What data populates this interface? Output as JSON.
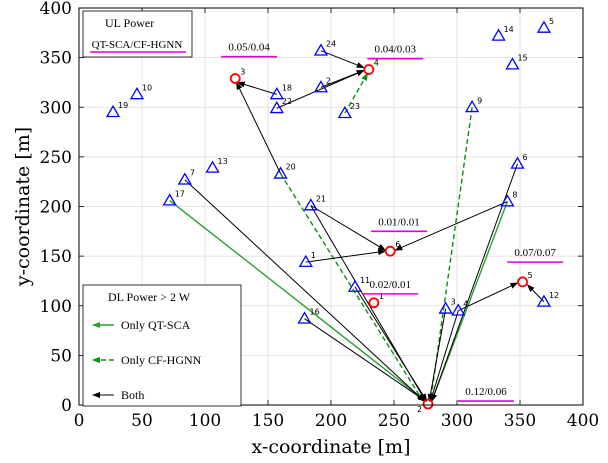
{
  "chart_data": {
    "type": "scatter",
    "xlabel": "x-coordinate [m]",
    "ylabel": "y-coordinate [m]",
    "xlim": [
      0,
      400
    ],
    "ylim": [
      0,
      400
    ],
    "xticks": [
      0,
      50,
      100,
      150,
      200,
      250,
      300,
      350,
      400
    ],
    "yticks": [
      0,
      50,
      100,
      150,
      200,
      250,
      300,
      350,
      400
    ],
    "grid": true,
    "colors": {
      "user": "#0000ff",
      "ap": "#ff0000",
      "qt": "#2ca02c",
      "cf": "#0a8f0a",
      "both": "#000000",
      "underline": "#e000e0"
    },
    "users": [
      {
        "id": "1",
        "x": 180,
        "y": 144
      },
      {
        "id": "2",
        "x": 192,
        "y": 320
      },
      {
        "id": "3",
        "x": 291,
        "y": 97
      },
      {
        "id": "4",
        "x": 301,
        "y": 95
      },
      {
        "id": "5",
        "x": 369,
        "y": 380
      },
      {
        "id": "6",
        "x": 348,
        "y": 243
      },
      {
        "id": "7",
        "x": 84,
        "y": 227
      },
      {
        "id": "8",
        "x": 340,
        "y": 205
      },
      {
        "id": "9",
        "x": 312,
        "y": 300
      },
      {
        "id": "10",
        "x": 46,
        "y": 313
      },
      {
        "id": "11",
        "x": 219,
        "y": 119
      },
      {
        "id": "12",
        "x": 369,
        "y": 104
      },
      {
        "id": "13",
        "x": 106,
        "y": 239
      },
      {
        "id": "14",
        "x": 333,
        "y": 372
      },
      {
        "id": "15",
        "x": 344,
        "y": 343
      },
      {
        "id": "16",
        "x": 179,
        "y": 87
      },
      {
        "id": "17",
        "x": 72,
        "y": 206
      },
      {
        "id": "18",
        "x": 157,
        "y": 313
      },
      {
        "id": "19",
        "x": 27,
        "y": 295
      },
      {
        "id": "20",
        "x": 160,
        "y": 233
      },
      {
        "id": "21",
        "x": 184,
        "y": 201
      },
      {
        "id": "22",
        "x": 157,
        "y": 299
      },
      {
        "id": "23",
        "x": 211,
        "y": 294
      },
      {
        "id": "24",
        "x": 192,
        "y": 357
      }
    ],
    "aps": [
      {
        "id": "1",
        "x": 234,
        "y": 103
      },
      {
        "id": "2",
        "x": 277,
        "y": 1
      },
      {
        "id": "3",
        "x": 124,
        "y": 329
      },
      {
        "id": "4",
        "x": 230,
        "y": 338
      },
      {
        "id": "5",
        "x": 352,
        "y": 124
      },
      {
        "id": "6",
        "x": 247,
        "y": 155
      }
    ],
    "links": [
      {
        "type": "qt",
        "from": [
          72,
          206
        ],
        "to": [
          275,
          4
        ]
      },
      {
        "type": "qt",
        "from": [
          340,
          205
        ],
        "to": [
          280,
          4
        ]
      },
      {
        "type": "cf",
        "from": [
          160,
          233
        ],
        "to": [
          273,
          4
        ]
      },
      {
        "type": "cf",
        "from": [
          312,
          300
        ],
        "to": [
          279,
          4
        ]
      },
      {
        "type": "cf",
        "from": [
          211,
          294
        ],
        "to": [
          229,
          334
        ]
      },
      {
        "type": "both",
        "from": [
          84,
          227
        ],
        "to": [
          274,
          4
        ]
      },
      {
        "type": "both",
        "from": [
          184,
          201
        ],
        "to": [
          275,
          4
        ]
      },
      {
        "type": "both",
        "from": [
          219,
          119
        ],
        "to": [
          276,
          4
        ]
      },
      {
        "type": "both",
        "from": [
          179,
          87
        ],
        "to": [
          275,
          4
        ]
      },
      {
        "type": "both",
        "from": [
          291,
          97
        ],
        "to": [
          278,
          4
        ]
      },
      {
        "type": "both",
        "from": [
          301,
          95
        ],
        "to": [
          279,
          4
        ]
      },
      {
        "type": "both",
        "from": [
          348,
          243
        ],
        "to": [
          280,
          4
        ]
      },
      {
        "type": "both",
        "from": [
          180,
          144
        ],
        "to": [
          243,
          155
        ]
      },
      {
        "type": "both",
        "from": [
          184,
          201
        ],
        "to": [
          243,
          156
        ]
      },
      {
        "type": "both",
        "from": [
          340,
          205
        ],
        "to": [
          251,
          156
        ]
      },
      {
        "type": "both",
        "from": [
          301,
          95
        ],
        "to": [
          348,
          123
        ]
      },
      {
        "type": "both",
        "from": [
          369,
          104
        ],
        "to": [
          356,
          121
        ]
      },
      {
        "type": "both",
        "from": [
          157,
          313
        ],
        "to": [
          126,
          325
        ]
      },
      {
        "type": "both",
        "from": [
          160,
          233
        ],
        "to": [
          125,
          325
        ]
      },
      {
        "type": "both",
        "from": [
          157,
          299
        ],
        "to": [
          226,
          337
        ]
      },
      {
        "type": "both",
        "from": [
          192,
          357
        ],
        "to": [
          226,
          340
        ]
      },
      {
        "type": "both",
        "from": [
          192,
          320
        ],
        "to": [
          226,
          337
        ]
      }
    ],
    "ratio_labels": [
      {
        "text": "0.05/0.04",
        "x": 135,
        "y": 357
      },
      {
        "text": "0.04/0.03",
        "x": 251,
        "y": 355
      },
      {
        "text": "0.01/0.01",
        "x": 254,
        "y": 181
      },
      {
        "text": "0.02/0.01",
        "x": 247,
        "y": 118
      },
      {
        "text": "0.07/0.07",
        "x": 362,
        "y": 150
      },
      {
        "text": "0.12/0.06",
        "x": 323,
        "y": 10
      }
    ],
    "legend_ul": {
      "title": "UL Power",
      "entry": "QT-SCA/CF-HGNN"
    },
    "legend_dl": {
      "title": "DL Power > 2 W",
      "entries": [
        {
          "label": "Only QT-SCA",
          "style": "qt"
        },
        {
          "label": "Only CF-HGNN",
          "style": "cf"
        },
        {
          "label": "Both",
          "style": "both"
        }
      ]
    }
  }
}
